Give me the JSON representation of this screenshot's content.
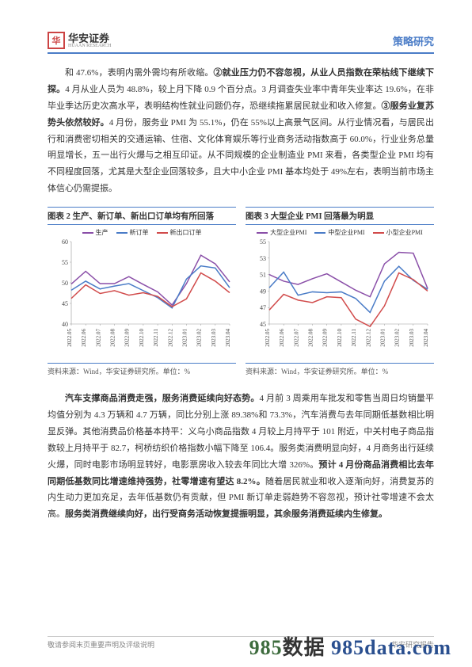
{
  "header": {
    "logo_cn": "华安证券",
    "logo_en": "HUAAN RESEARCH",
    "right": "策略研究"
  },
  "para1": {
    "t0": "和 47.6%，表明内需外需均有所收缩。",
    "b1": "②就业压力仍不容忽视，从业人员指数在荣枯线下继续下探。",
    "t1": "4 月从业人员为 48.8%，较上月下降 0.9 个百分点。3 月调查失业率中青年失业率达 19.6%，在非毕业季达历史次高水平，表明结构性就业问题仍存，恐继续拖累居民就业和收入修复。",
    "b2": "③服务业复苏势头依然较好。",
    "t2": "4 月份，服务业 PMI 为 55.1%，仍在 55%以上高景气区间。从行业情况看，与居民出行和消费密切相关的交通运输、住宿、文化体育娱乐等行业商务活动指数高于 60.0%，行业业务总量明显增长，五一出行火爆与之相互印证。从不同规模的企业制造业 PMI 来看，各类型企业 PMI 均有不同程度回落，尤其是大型企业回落较多，且大中小企业 PMI 基本均处于 49%左右，表明当前市场主体信心仍需提振。"
  },
  "chart2": {
    "title": "图表 2 生产、新订单、新出口订单均有所回落",
    "source": "资料来源：Wind，华安证券研究所。单位：%",
    "type": "line",
    "xlabels": [
      "2022.05",
      "2022.06",
      "2022.07",
      "2022.08",
      "2022.09",
      "2022.10",
      "2022.11",
      "2022.12",
      "2023.01",
      "2023.02",
      "2023.03",
      "2023.04"
    ],
    "ylim": [
      40,
      60
    ],
    "ytick_step": 5,
    "series": [
      {
        "name": "生产",
        "color": "#8a4fa8",
        "values": [
          49.7,
          52.8,
          49.8,
          49.8,
          51.5,
          49.6,
          47.8,
          44.6,
          49.8,
          56.7,
          54.6,
          50.2
        ]
      },
      {
        "name": "新订单",
        "color": "#4a7cc7",
        "values": [
          48.2,
          50.4,
          48.5,
          49.2,
          49.8,
          48.1,
          46.4,
          43.9,
          50.9,
          54.1,
          53.6,
          48.8
        ]
      },
      {
        "name": "新出口订单",
        "color": "#d14b4b",
        "values": [
          46.2,
          49.5,
          47.4,
          48.1,
          47.0,
          47.6,
          46.7,
          44.2,
          46.1,
          52.4,
          50.4,
          47.6
        ]
      }
    ],
    "x_fontsize": 7,
    "y_fontsize": 8,
    "line_width": 1.5,
    "background_color": "#ffffff",
    "grid": false
  },
  "chart3": {
    "title": "图表 3 大型企业 PMI 回落最为明显",
    "source": "资料来源：Wind，华安证券研究所。单位：%",
    "type": "line",
    "xlabels": [
      "2022.05",
      "2022.06",
      "2022.07",
      "2022.08",
      "2022.09",
      "2022.10",
      "2022.11",
      "2022.12",
      "2023.01",
      "2023.02",
      "2023.03",
      "2023.04"
    ],
    "ylim": [
      45,
      55
    ],
    "ytick_step": 2,
    "series": [
      {
        "name": "大型企业PMI",
        "color": "#8a4fa8",
        "values": [
          51.0,
          50.2,
          49.8,
          50.5,
          51.1,
          50.1,
          49.1,
          48.3,
          52.3,
          53.7,
          53.6,
          49.3
        ]
      },
      {
        "name": "中型企业PMI",
        "color": "#4a7cc7",
        "values": [
          49.4,
          51.3,
          48.5,
          48.9,
          48.8,
          48.9,
          48.1,
          46.4,
          50.2,
          52.0,
          50.3,
          49.2
        ]
      },
      {
        "name": "小型企业PMI",
        "color": "#d14b4b",
        "values": [
          46.7,
          48.6,
          47.9,
          47.6,
          48.3,
          48.2,
          45.6,
          44.7,
          47.2,
          51.2,
          50.4,
          49.0
        ]
      }
    ],
    "x_fontsize": 7,
    "y_fontsize": 8,
    "line_width": 1.5,
    "background_color": "#ffffff",
    "grid": false
  },
  "para2": {
    "b0": "汽车支撑商品消费走强，服务消费延续向好态势。",
    "t0": "4 月前 3 周乘用车批发和零售当周日均销量平均值分别为 4.3 万辆和 4.7 万辆，同比分别上涨 89.38%和 73.3%，汽车消费与去年同期低基数相比明显反弹。其他消费品价格基本持平：义乌小商品指数 4 月较上月持平于 101 附近，中关村电子商品指数较上月持平于 82.7，柯桥纺织价格指数小幅下降至 106.4。服务类消费明显向好，4 月商务出行延续火爆，同时电影市场明显转好，电影票房收入较去年同比大增 326%。",
    "b1": "预计 4 月份商品消费相比去年同期低基数同比增速维持强势，社零增速有望达 8.2%。",
    "t1": "随着居民就业和收入逐渐向好，消费复苏的内生动力更加充足，去年低基数仍有贡献，但 PMI 新订单走弱趋势不容忽视，预计社零增速不会太高。",
    "b2": "服务类消费继续向好，出行受商务活动恢复提振明显，其余服务消费延续内生修复。"
  },
  "footer": {
    "left": "敬请参阅末页重要声明及评级说明",
    "right": "华安研究报告"
  },
  "watermark": {
    "a": "985",
    "b": "数据 ",
    "c": "985",
    "d": "data",
    "e": ".com"
  }
}
